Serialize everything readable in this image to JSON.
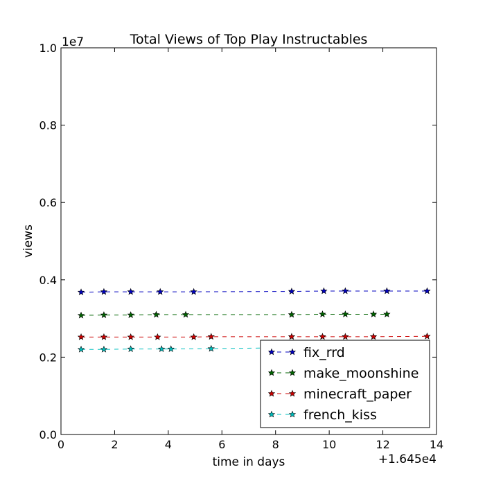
{
  "chart_data": {
    "type": "line",
    "title": "Total Views of Top Play Instructables",
    "xlabel": "time in days",
    "ylabel": "views",
    "xlim": [
      0,
      14
    ],
    "ylim": [
      0.0,
      1.0
    ],
    "x_ticks": [
      0,
      2,
      4,
      6,
      8,
      10,
      12,
      14
    ],
    "y_ticks": [
      0.0,
      0.2,
      0.4,
      0.6,
      0.8,
      1.0
    ],
    "x_tick_labels": [
      "0",
      "2",
      "4",
      "6",
      "8",
      "10",
      "12",
      "14"
    ],
    "y_tick_labels": [
      "0.0",
      "0.2",
      "0.4",
      "0.6",
      "0.8",
      "1.0"
    ],
    "x_offset_label": "+1.645e4",
    "y_multiplier_label": "1e7",
    "legend_position": "lower-right",
    "series": [
      {
        "name": "fix_rrd",
        "color": "#0000bf",
        "x": [
          0.75,
          1.6,
          2.6,
          3.7,
          4.95,
          8.6,
          9.8,
          10.6,
          12.15,
          13.65
        ],
        "y": [
          0.368,
          0.369,
          0.369,
          0.369,
          0.369,
          0.37,
          0.371,
          0.371,
          0.371,
          0.371
        ]
      },
      {
        "name": "make_moonshine",
        "color": "#006400",
        "x": [
          0.75,
          1.6,
          2.6,
          3.55,
          4.65,
          8.6,
          9.75,
          10.6,
          11.65,
          12.15
        ],
        "y": [
          0.308,
          0.309,
          0.309,
          0.31,
          0.31,
          0.31,
          0.311,
          0.311,
          0.311,
          0.311
        ]
      },
      {
        "name": "minecraft_paper",
        "color": "#cc0000",
        "x": [
          0.75,
          1.6,
          2.6,
          3.6,
          4.95,
          5.6,
          8.6,
          9.75,
          10.6,
          11.65,
          13.65
        ],
        "y": [
          0.252,
          0.252,
          0.252,
          0.252,
          0.252,
          0.253,
          0.253,
          0.253,
          0.253,
          0.253,
          0.254
        ]
      },
      {
        "name": "french_kiss",
        "color": "#00bfbf",
        "x": [
          0.75,
          1.6,
          2.6,
          3.75,
          4.1,
          5.6,
          8.0
        ],
        "y": [
          0.22,
          0.22,
          0.221,
          0.221,
          0.221,
          0.222,
          0.224
        ]
      }
    ]
  }
}
